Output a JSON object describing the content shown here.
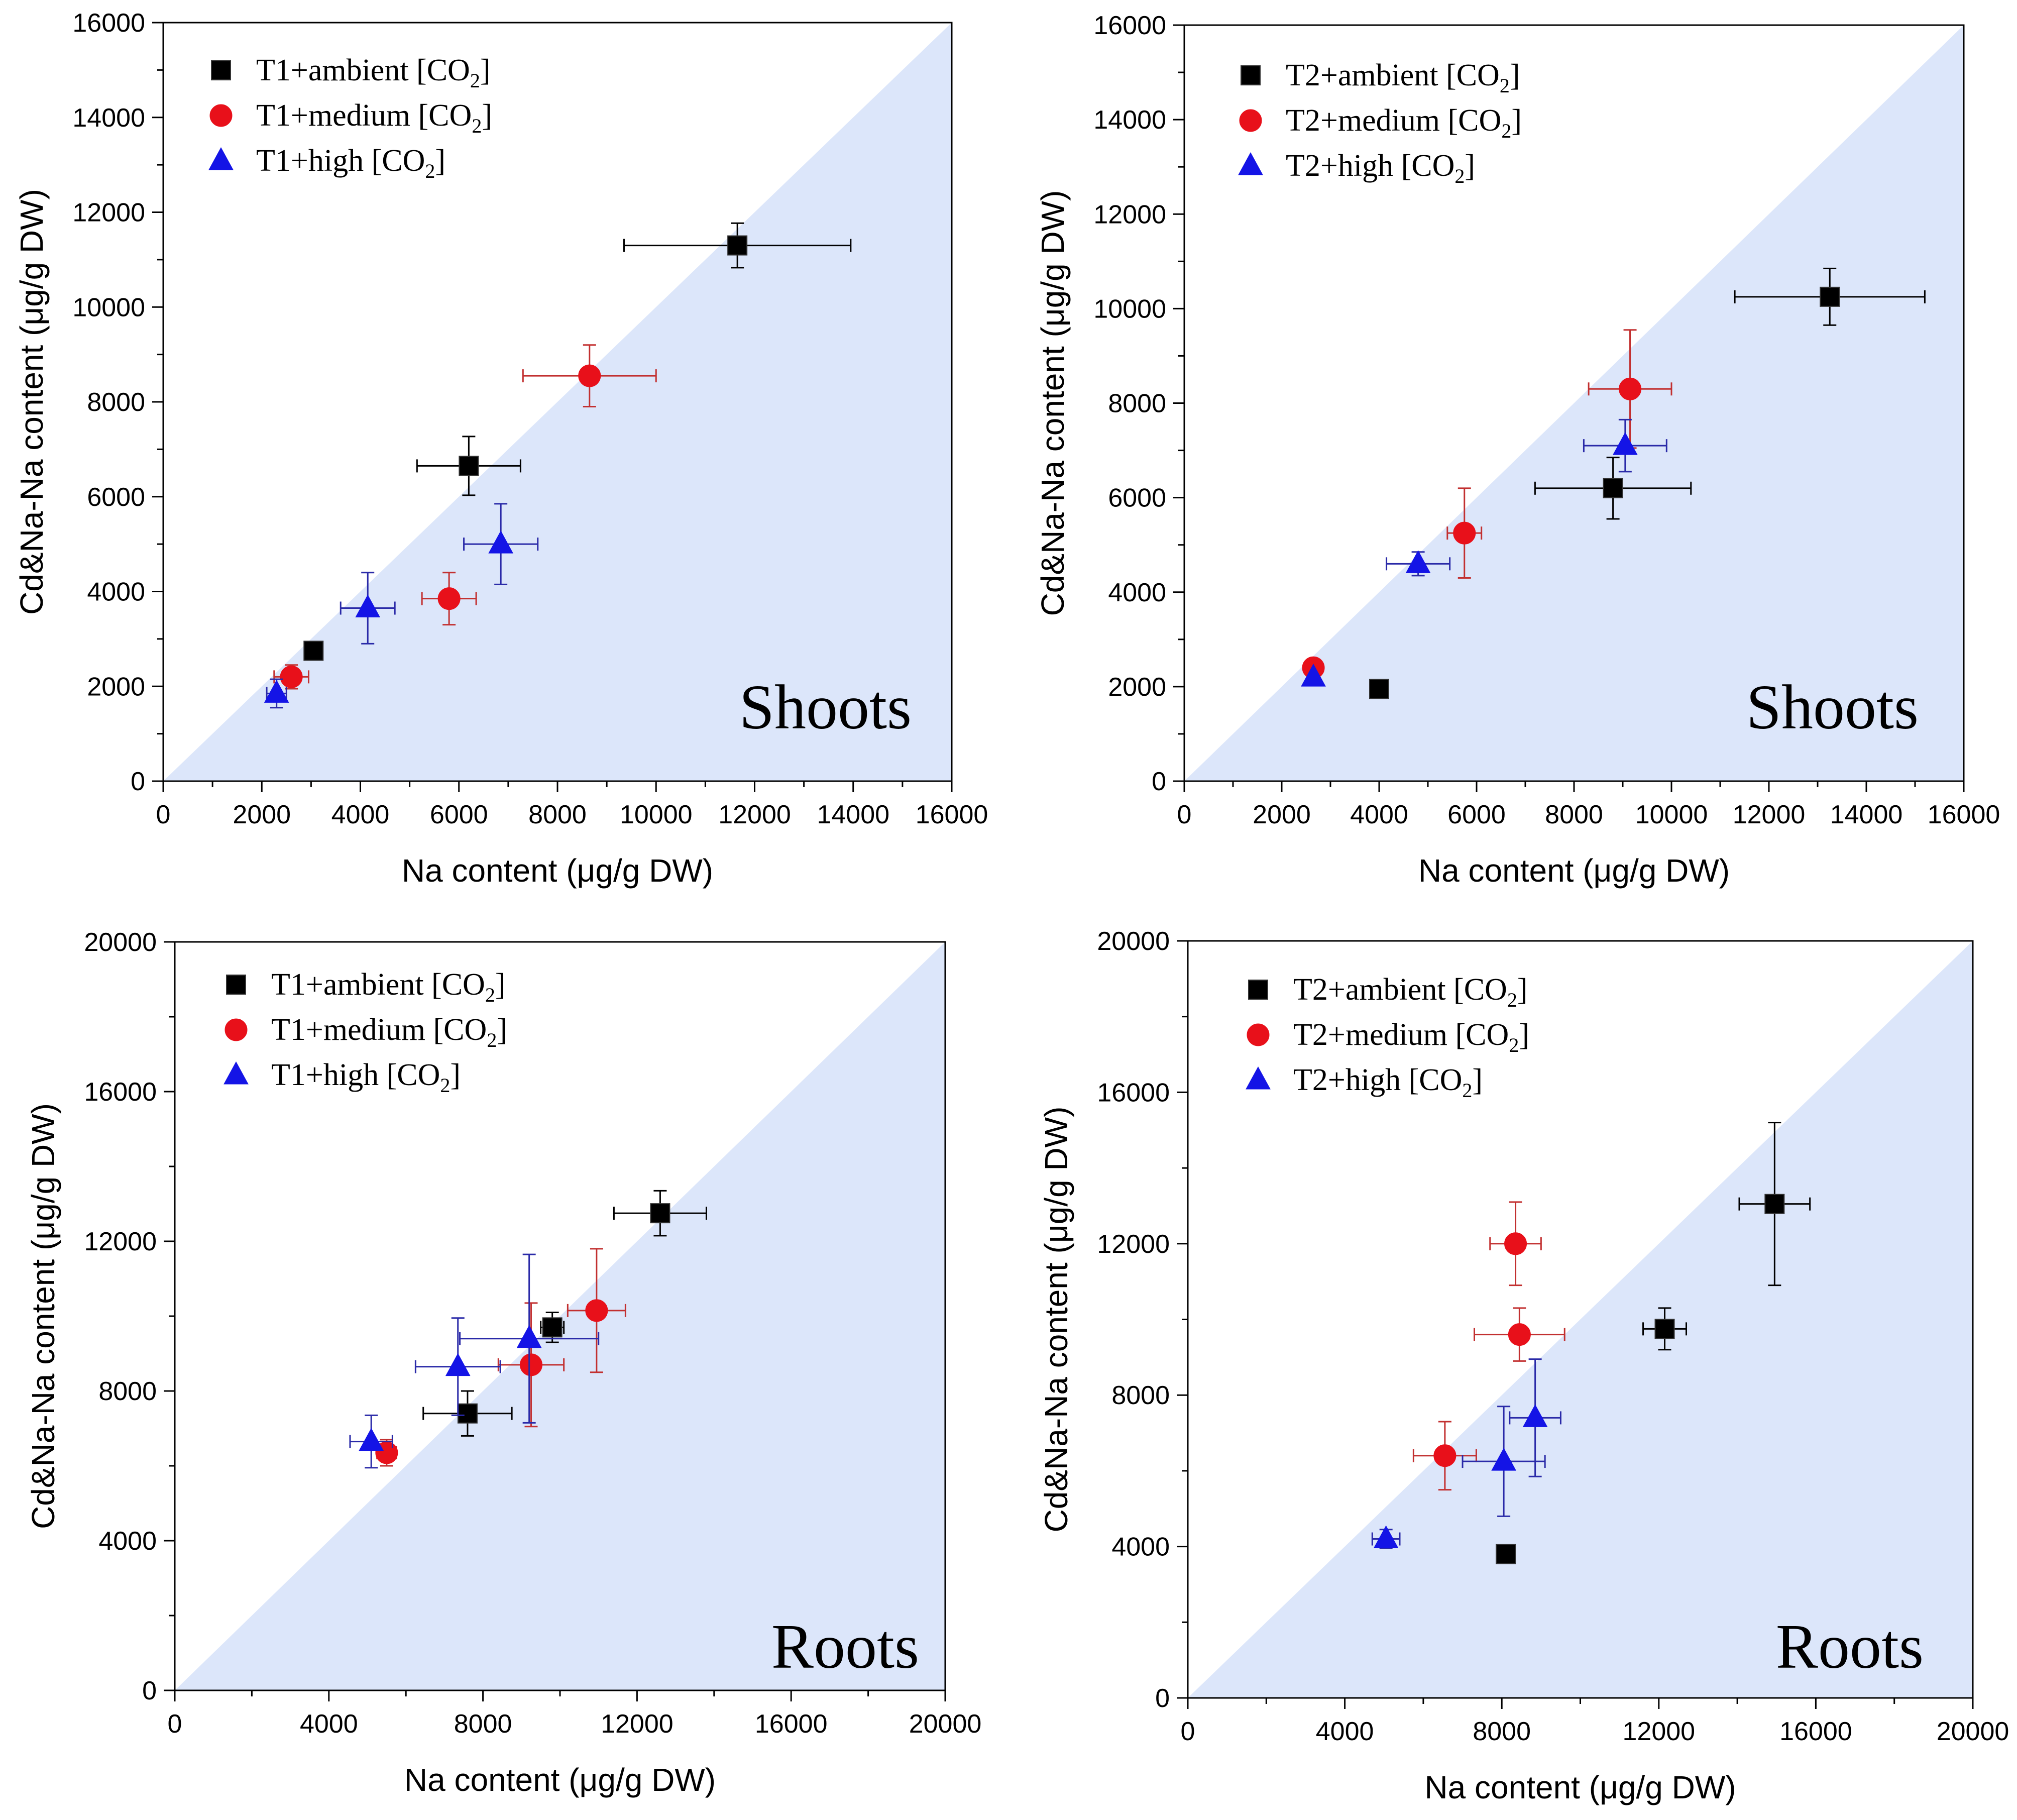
{
  "colors": {
    "region_fill": "#dce6fa",
    "series": {
      "ambient": "#000000",
      "medium": "#e8101a",
      "high": "#1414e6"
    },
    "errorbar": {
      "ambient": "#000000",
      "medium": "#c23030",
      "high": "#2a2aa8"
    },
    "axis": "#000000"
  },
  "chart_data": [
    {
      "type": "scatter",
      "panel": "top-left",
      "annotation": "Shoots",
      "xlabel": "Na content (μg/g DW)",
      "ylabel": "Cd&Na-Na content (μg/g DW)",
      "xlim": [
        0,
        16000
      ],
      "ylim": [
        0,
        16000
      ],
      "x_ticks": [
        0,
        2000,
        4000,
        6000,
        8000,
        10000,
        12000,
        14000,
        16000
      ],
      "y_ticks": [
        0,
        2000,
        4000,
        6000,
        8000,
        10000,
        12000,
        14000,
        16000
      ],
      "x_tick_labels": [
        "0",
        "2000",
        "4000",
        "6000",
        "8000",
        "10000",
        "12000",
        "14000",
        "16000"
      ],
      "y_tick_labels": [
        "0",
        "2000",
        "4000",
        "6000",
        "8000",
        "10000",
        "12000",
        "14000",
        "16000"
      ],
      "shaded_region": "below the 1:1 line",
      "legend_position": "top-left",
      "series": [
        {
          "name": "T1+ambient",
          "key": "ambient",
          "label_prefix": "T1+ambient [CO",
          "label_sub": "2",
          "label_suffix": "]",
          "marker": "square",
          "points": [
            {
              "x": 11650,
              "y": 11300,
              "xerr": 2300,
              "yerr": 470
            },
            {
              "x": 6200,
              "y": 6650,
              "xerr": 1050,
              "yerr": 620
            },
            {
              "x": 3050,
              "y": 2750,
              "xerr": 150,
              "yerr": 120
            }
          ]
        },
        {
          "name": "T1+medium",
          "key": "medium",
          "label_prefix": "T1+medium [CO",
          "label_sub": "2",
          "label_suffix": "]",
          "marker": "circle",
          "points": [
            {
              "x": 8650,
              "y": 8550,
              "xerr": 1350,
              "yerr": 650
            },
            {
              "x": 5800,
              "y": 3850,
              "xerr": 550,
              "yerr": 550
            },
            {
              "x": 2600,
              "y": 2200,
              "xerr": 350,
              "yerr": 250
            }
          ]
        },
        {
          "name": "T1+high",
          "key": "high",
          "label_prefix": "T1+high [CO",
          "label_sub": "2",
          "label_suffix": "]",
          "marker": "triangle",
          "points": [
            {
              "x": 6850,
              "y": 5000,
              "xerr": 750,
              "yerr": 850
            },
            {
              "x": 4150,
              "y": 3650,
              "xerr": 550,
              "yerr": 750
            },
            {
              "x": 2300,
              "y": 1850,
              "xerr": 200,
              "yerr": 300
            }
          ]
        }
      ]
    },
    {
      "type": "scatter",
      "panel": "top-right",
      "annotation": "Shoots",
      "xlabel": "Na content (μg/g DW)",
      "ylabel": "Cd&Na-Na content (μg/g DW)",
      "xlim": [
        0,
        16000
      ],
      "ylim": [
        0,
        16000
      ],
      "x_ticks": [
        0,
        2000,
        4000,
        6000,
        8000,
        10000,
        12000,
        14000,
        16000
      ],
      "y_ticks": [
        0,
        2000,
        4000,
        6000,
        8000,
        10000,
        12000,
        14000,
        16000
      ],
      "x_tick_labels": [
        "0",
        "2000",
        "4000",
        "6000",
        "8000",
        "10000",
        "12000",
        "14000",
        "16000"
      ],
      "y_tick_labels": [
        "0",
        "2000",
        "4000",
        "6000",
        "8000",
        "10000",
        "12000",
        "14000",
        "16000"
      ],
      "shaded_region": "below the 1:1 line",
      "legend_position": "top-left",
      "series": [
        {
          "name": "T2+ambient",
          "key": "ambient",
          "label_prefix": "T2+ambient [CO",
          "label_sub": "2",
          "label_suffix": "]",
          "marker": "square",
          "points": [
            {
              "x": 13250,
              "y": 10250,
              "xerr": 1950,
              "yerr": 600
            },
            {
              "x": 8800,
              "y": 6200,
              "xerr": 1600,
              "yerr": 650
            },
            {
              "x": 4000,
              "y": 1950,
              "xerr": 0,
              "yerr": 0
            }
          ]
        },
        {
          "name": "T2+medium",
          "key": "medium",
          "label_prefix": "T2+medium [CO",
          "label_sub": "2",
          "label_suffix": "]",
          "marker": "circle",
          "points": [
            {
              "x": 9150,
              "y": 8300,
              "xerr": 850,
              "yerr": 1250
            },
            {
              "x": 5750,
              "y": 5250,
              "xerr": 350,
              "yerr": 950
            },
            {
              "x": 2650,
              "y": 2400,
              "xerr": 0,
              "yerr": 0
            }
          ]
        },
        {
          "name": "T2+high",
          "key": "high",
          "label_prefix": "T2+high [CO",
          "label_sub": "2",
          "label_suffix": "]",
          "marker": "triangle",
          "points": [
            {
              "x": 9050,
              "y": 7100,
              "xerr": 850,
              "yerr": 550
            },
            {
              "x": 4800,
              "y": 4600,
              "xerr": 650,
              "yerr": 250
            },
            {
              "x": 2650,
              "y": 2200,
              "xerr": 0,
              "yerr": 0
            }
          ]
        }
      ]
    },
    {
      "type": "scatter",
      "panel": "bottom-left",
      "annotation": "Roots",
      "xlabel": "Na content (μg/g DW)",
      "ylabel": "Cd&Na-Na content (μg/g DW)",
      "xlim": [
        0,
        20000
      ],
      "ylim": [
        0,
        20000
      ],
      "x_ticks": [
        0,
        4000,
        8000,
        12000,
        16000,
        20000
      ],
      "y_ticks": [
        0,
        4000,
        8000,
        12000,
        16000,
        20000
      ],
      "x_tick_labels": [
        "0",
        "4000",
        "8000",
        "12000",
        "16000",
        "20000"
      ],
      "y_tick_labels": [
        "0",
        "4000",
        "8000",
        "12000",
        "16000",
        "20000"
      ],
      "shaded_region": "below the 1:1 line",
      "legend_position": "top-left",
      "series": [
        {
          "name": "T1+ambient",
          "key": "ambient",
          "label_prefix": "T1+ambient [CO",
          "label_sub": "2",
          "label_suffix": "]",
          "marker": "square",
          "points": [
            {
              "x": 12600,
              "y": 12750,
              "xerr": 1200,
              "yerr": 600
            },
            {
              "x": 9800,
              "y": 9700,
              "xerr": 300,
              "yerr": 400
            },
            {
              "x": 7600,
              "y": 7400,
              "xerr": 1150,
              "yerr": 600
            }
          ]
        },
        {
          "name": "T1+medium",
          "key": "medium",
          "label_prefix": "T1+medium [CO",
          "label_sub": "2",
          "label_suffix": "]",
          "marker": "circle",
          "points": [
            {
              "x": 10950,
              "y": 10150,
              "xerr": 750,
              "yerr": 1650
            },
            {
              "x": 9250,
              "y": 8700,
              "xerr": 850,
              "yerr": 1650
            },
            {
              "x": 5500,
              "y": 6350,
              "xerr": 250,
              "yerr": 350
            }
          ]
        },
        {
          "name": "T1+high",
          "key": "high",
          "label_prefix": "T1+high [CO",
          "label_sub": "2",
          "label_suffix": "]",
          "marker": "triangle",
          "points": [
            {
              "x": 9200,
              "y": 9400,
              "xerr": 1800,
              "yerr": 2250
            },
            {
              "x": 7350,
              "y": 8650,
              "xerr": 1100,
              "yerr": 1300
            },
            {
              "x": 5100,
              "y": 6650,
              "xerr": 550,
              "yerr": 700
            }
          ]
        }
      ]
    },
    {
      "type": "scatter",
      "panel": "bottom-right",
      "annotation": "Roots",
      "xlabel": "Na content (μg/g DW)",
      "ylabel": "Cd&Na-Na content (μg/g DW)",
      "xlim": [
        0,
        20000
      ],
      "ylim": [
        0,
        20000
      ],
      "x_ticks": [
        0,
        4000,
        8000,
        12000,
        16000,
        20000
      ],
      "y_ticks": [
        0,
        4000,
        8000,
        12000,
        16000,
        20000
      ],
      "x_tick_labels": [
        "0",
        "4000",
        "8000",
        "12000",
        "16000",
        "20000"
      ],
      "y_tick_labels": [
        "0",
        "4000",
        "8000",
        "12000",
        "16000",
        "20000"
      ],
      "shaded_region": "below the 1:1 line",
      "legend_position": "top-left",
      "series": [
        {
          "name": "T2+ambient",
          "key": "ambient",
          "label_prefix": "T2+ambient [CO",
          "label_sub": "2",
          "label_suffix": "]",
          "marker": "square",
          "points": [
            {
              "x": 14950,
              "y": 13050,
              "xerr": 900,
              "yerr": 2150
            },
            {
              "x": 12150,
              "y": 9750,
              "xerr": 550,
              "yerr": 550
            },
            {
              "x": 8100,
              "y": 3800,
              "xerr": 0,
              "yerr": 0
            }
          ]
        },
        {
          "name": "T2+medium",
          "key": "medium",
          "label_prefix": "T2+medium [CO",
          "label_sub": "2",
          "label_suffix": "]",
          "marker": "circle",
          "points": [
            {
              "x": 8350,
              "y": 12000,
              "xerr": 650,
              "yerr": 1100
            },
            {
              "x": 8450,
              "y": 9600,
              "xerr": 1150,
              "yerr": 700
            },
            {
              "x": 6550,
              "y": 6400,
              "xerr": 800,
              "yerr": 900
            }
          ]
        },
        {
          "name": "T2+high",
          "key": "high",
          "label_prefix": "T2+high [CO",
          "label_sub": "2",
          "label_suffix": "]",
          "marker": "triangle",
          "points": [
            {
              "x": 8850,
              "y": 7400,
              "xerr": 650,
              "yerr": 1550
            },
            {
              "x": 8050,
              "y": 6250,
              "xerr": 1050,
              "yerr": 1450
            },
            {
              "x": 5050,
              "y": 4200,
              "xerr": 350,
              "yerr": 250
            }
          ]
        }
      ]
    }
  ]
}
